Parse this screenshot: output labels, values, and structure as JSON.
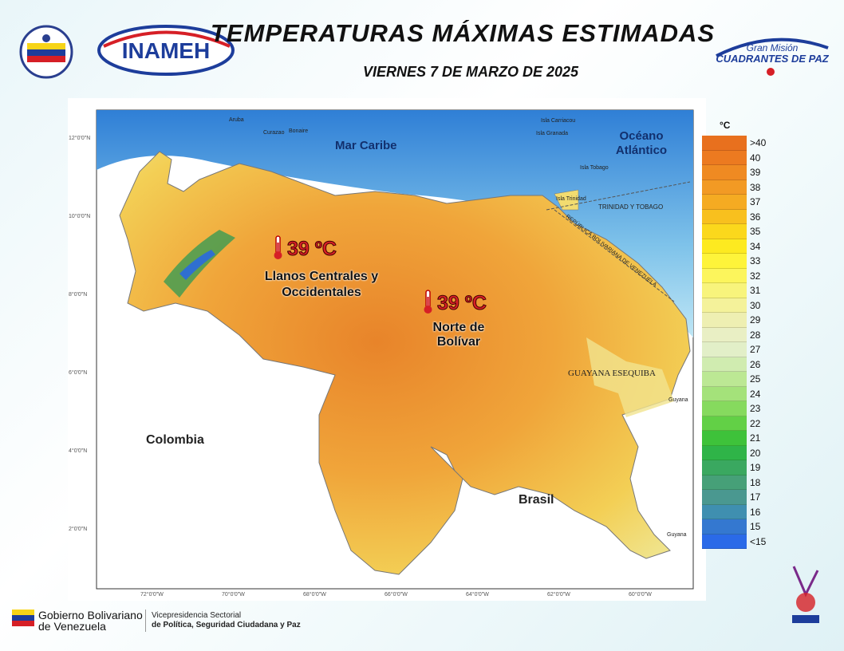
{
  "header": {
    "title": "TEMPERATURAS MÁXIMAS ESTIMADAS",
    "subtitle": "VIERNES 7 DE MARZO DE 2025",
    "logo_left": "INAMEH",
    "logo_right_top": "Gran Misión",
    "logo_right_main": "CUADRANTES DE PAZ"
  },
  "map": {
    "seas": [
      "Mar Caribe",
      "Océano Atlántico"
    ],
    "countries": [
      "Colombia",
      "Brasil",
      "GUAYANA ESEQUIBA",
      "TRINIDAD Y TOBAGO",
      "REPÚBLICA BOLIVARIANA DE VENEZUELA"
    ],
    "islands": [
      "Aruba",
      "Curazao",
      "Bonaire",
      "Isla Carriacou",
      "Isla Granada",
      "Isla Tobago",
      "Isla Trinidad",
      "Guyana",
      "Guyana"
    ],
    "latitudes": [
      "12°0'0\"N",
      "10°0'0\"N",
      "8°0'0\"N",
      "6°0'0\"N",
      "4°0'0\"N",
      "2°0'0\"N"
    ],
    "longitudes": [
      "72°0'0\"W",
      "70°0'0\"W",
      "68°0'0\"W",
      "66°0'0\"W",
      "64°0'0\"W",
      "62°0'0\"W",
      "60°0'0\"W"
    ],
    "annotations": [
      {
        "value": "39 ºC",
        "region": [
          "Llanos Centrales y",
          "Occidentales"
        ]
      },
      {
        "value": "39 ºC",
        "region": [
          "Norte de Bolívar"
        ]
      }
    ]
  },
  "legend": {
    "unit": "°C",
    "items": [
      {
        "label": ">40",
        "color": "#e8701e"
      },
      {
        "label": "40",
        "color": "#ec7a20"
      },
      {
        "label": "39",
        "color": "#ef8a22"
      },
      {
        "label": "38",
        "color": "#f29a24"
      },
      {
        "label": "37",
        "color": "#f5ab22"
      },
      {
        "label": "36",
        "color": "#f8c01e"
      },
      {
        "label": "35",
        "color": "#fbd81c"
      },
      {
        "label": "34",
        "color": "#fdea20"
      },
      {
        "label": "33",
        "color": "#fef43a"
      },
      {
        "label": "32",
        "color": "#fcf55c"
      },
      {
        "label": "31",
        "color": "#f8f47c"
      },
      {
        "label": "30",
        "color": "#f4f29a"
      },
      {
        "label": "29",
        "color": "#eeefb2"
      },
      {
        "label": "28",
        "color": "#e9efc4"
      },
      {
        "label": "27",
        "color": "#e2efc8"
      },
      {
        "label": "26",
        "color": "#d0ecb0"
      },
      {
        "label": "25",
        "color": "#bce894"
      },
      {
        "label": "24",
        "color": "#a4e27a"
      },
      {
        "label": "23",
        "color": "#86da5e"
      },
      {
        "label": "22",
        "color": "#62d046"
      },
      {
        "label": "21",
        "color": "#3ec23a"
      },
      {
        "label": "20",
        "color": "#2fb448"
      },
      {
        "label": "19",
        "color": "#3aa860"
      },
      {
        "label": "18",
        "color": "#46a078"
      },
      {
        "label": "17",
        "color": "#4a9890"
      },
      {
        "label": "16",
        "color": "#3f8fb0"
      },
      {
        "label": "15",
        "color": "#3478d0"
      },
      {
        "label": "<15",
        "color": "#2a6ae8"
      }
    ]
  },
  "footer": {
    "gov_line1": "Gobierno Bolivariano",
    "gov_line2": "de Venezuela",
    "vice_line1": "Vicepresidencia Sectorial",
    "vice_line2": "de Política, Seguridad Ciudadana y Paz"
  }
}
